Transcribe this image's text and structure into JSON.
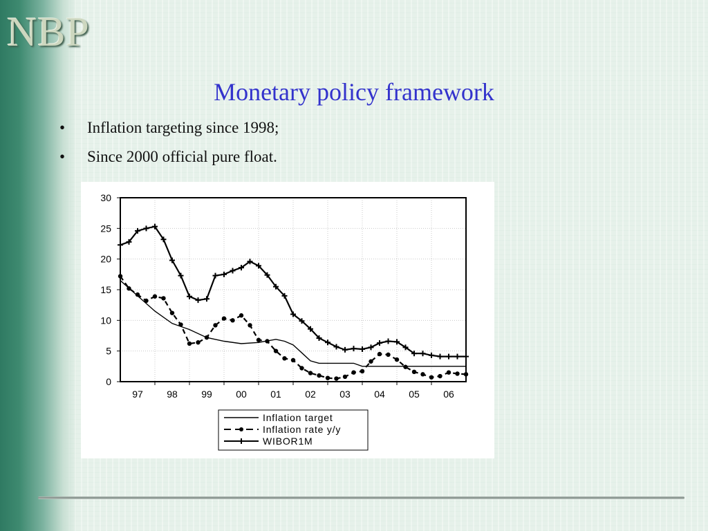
{
  "logo": {
    "text": "NBP"
  },
  "title": "Monetary policy framework",
  "bullets": [
    {
      "marker": "•",
      "text": "Inflation targeting since 1998;"
    },
    {
      "marker": "•",
      "text": "Since 2000 official pure float."
    }
  ],
  "chart_data": {
    "type": "line",
    "title": "",
    "xlabel": "",
    "ylabel": "",
    "x_tick_labels": [
      "97",
      "98",
      "99",
      "00",
      "01",
      "02",
      "03",
      "04",
      "05",
      "06"
    ],
    "y_tick_labels": [
      "0",
      "5",
      "10",
      "15",
      "20",
      "25",
      "30"
    ],
    "xlim": [
      1997.0,
      2007.0
    ],
    "ylim": [
      0,
      30
    ],
    "grid": true,
    "legend": "below",
    "series": [
      {
        "name": "Inflation target",
        "style": "solid",
        "color": "#000000",
        "x": [
          1997.0,
          1997.5,
          1998.0,
          1998.5,
          1999.0,
          1999.5,
          2000.0,
          2000.5,
          2001.0,
          2001.5,
          2001.75,
          2002.0,
          2002.25,
          2002.5,
          2002.75,
          2003.0,
          2003.25,
          2003.5,
          2003.75,
          2004.0,
          2005.0,
          2006.0,
          2007.0
        ],
        "y": [
          16.5,
          14.0,
          11.5,
          9.5,
          8.5,
          7.2,
          6.6,
          6.2,
          6.4,
          6.9,
          6.6,
          6.0,
          4.7,
          3.4,
          3.0,
          3.0,
          3.0,
          3.0,
          3.0,
          2.5,
          2.5,
          2.5,
          2.5
        ]
      },
      {
        "name": "Inflation rate y/y",
        "style": "dashed-dots",
        "color": "#000000",
        "x": [
          1997.0,
          1997.25,
          1997.5,
          1997.75,
          1998.0,
          1998.25,
          1998.5,
          1998.75,
          1999.0,
          1999.25,
          1999.5,
          1999.75,
          2000.0,
          2000.25,
          2000.5,
          2000.75,
          2001.0,
          2001.25,
          2001.5,
          2001.75,
          2002.0,
          2002.25,
          2002.5,
          2002.75,
          2003.0,
          2003.25,
          2003.5,
          2003.75,
          2004.0,
          2004.25,
          2004.5,
          2004.75,
          2005.0,
          2005.25,
          2005.5,
          2005.75,
          2006.0,
          2006.25,
          2006.5,
          2006.75,
          2007.0
        ],
        "y": [
          17.2,
          15.2,
          14.2,
          13.2,
          13.9,
          13.6,
          11.2,
          9.3,
          6.2,
          6.4,
          7.2,
          9.2,
          10.3,
          10.0,
          10.8,
          9.2,
          6.8,
          6.6,
          5.0,
          3.8,
          3.5,
          2.2,
          1.4,
          1.0,
          0.6,
          0.5,
          0.8,
          1.5,
          1.7,
          3.3,
          4.5,
          4.4,
          3.6,
          2.4,
          1.6,
          1.2,
          0.7,
          0.9,
          1.5,
          1.3,
          1.2
        ]
      },
      {
        "name": "WIBOR1M",
        "style": "solid-plus",
        "color": "#000000",
        "x": [
          1997.0,
          1997.25,
          1997.5,
          1997.75,
          1998.0,
          1998.25,
          1998.5,
          1998.75,
          1999.0,
          1999.25,
          1999.5,
          1999.75,
          2000.0,
          2000.25,
          2000.5,
          2000.75,
          2001.0,
          2001.25,
          2001.5,
          2001.75,
          2002.0,
          2002.25,
          2002.5,
          2002.75,
          2003.0,
          2003.25,
          2003.5,
          2003.75,
          2004.0,
          2004.25,
          2004.5,
          2004.75,
          2005.0,
          2005.25,
          2005.5,
          2005.75,
          2006.0,
          2006.25,
          2006.5,
          2006.75,
          2007.0
        ],
        "y": [
          22.3,
          22.8,
          24.6,
          25.0,
          25.3,
          23.2,
          19.8,
          17.3,
          13.9,
          13.3,
          13.5,
          17.3,
          17.5,
          18.1,
          18.6,
          19.6,
          18.9,
          17.4,
          15.5,
          14.0,
          11.0,
          9.9,
          8.6,
          7.1,
          6.4,
          5.7,
          5.2,
          5.4,
          5.3,
          5.6,
          6.3,
          6.6,
          6.5,
          5.6,
          4.6,
          4.6,
          4.3,
          4.1,
          4.1,
          4.1,
          4.1
        ]
      }
    ]
  }
}
